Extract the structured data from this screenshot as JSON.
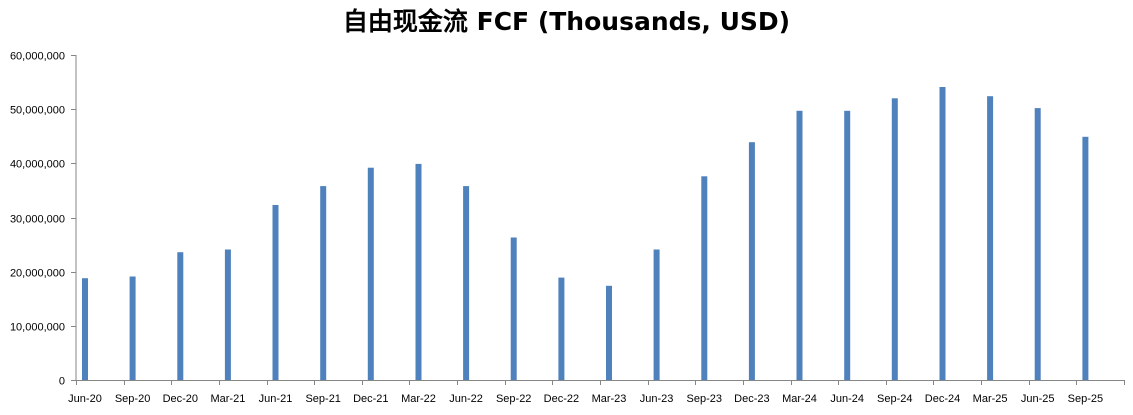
{
  "chart_data": {
    "type": "bar",
    "title": "自由现金流 FCF (Thousands, USD)",
    "xlabel": "",
    "ylabel": "",
    "ylim": [
      0,
      60000000
    ],
    "yticks": [
      0,
      10000000,
      20000000,
      30000000,
      40000000,
      50000000,
      60000000
    ],
    "ytick_labels": [
      "0",
      "10,000,000",
      "20,000,000",
      "30,000,000",
      "40,000,000",
      "50,000,000",
      "60,000,000"
    ],
    "grid": false,
    "legend": "none",
    "bar_color": "#4F81BD",
    "categories": [
      "Jun-20",
      "Sep-20",
      "Dec-20",
      "Mar-21",
      "Jun-21",
      "Sep-21",
      "Dec-21",
      "Mar-22",
      "Jun-22",
      "Sep-22",
      "Dec-22",
      "Mar-23",
      "Jun-23",
      "Sep-23",
      "Dec-23",
      "Mar-24",
      "Jun-24",
      "Sep-24",
      "Dec-24",
      "Mar-25",
      "Jun-25",
      "Sep-25"
    ],
    "values": [
      18800000,
      19100000,
      23600000,
      24100000,
      32300000,
      35800000,
      39200000,
      39900000,
      35800000,
      26300000,
      18900000,
      17400000,
      24100000,
      37600000,
      43900000,
      49700000,
      49700000,
      52000000,
      54100000,
      52400000,
      50200000,
      44900000
    ]
  }
}
